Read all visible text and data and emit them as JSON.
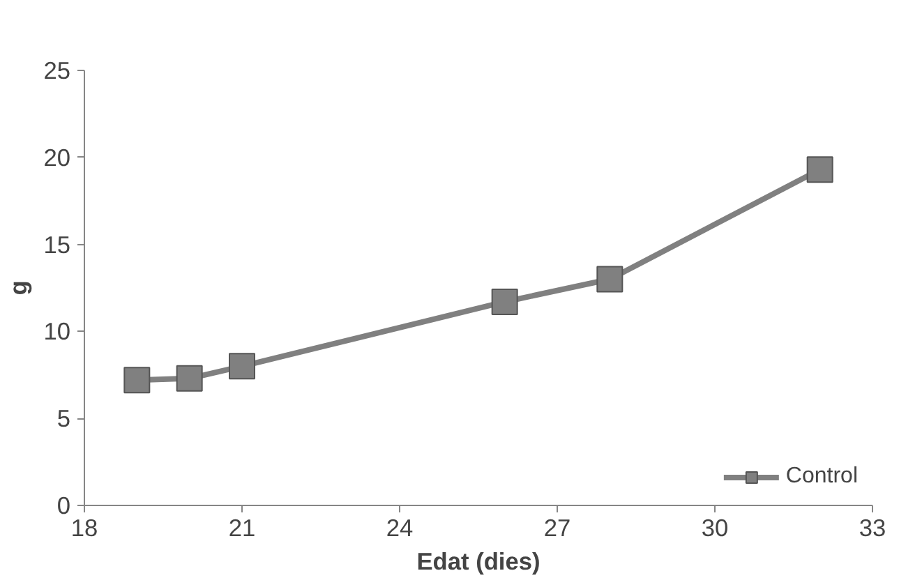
{
  "chart_data": {
    "type": "line",
    "xlabel": "Edat (dies)",
    "ylabel": "g",
    "x": [
      19,
      20,
      21,
      26,
      28,
      32
    ],
    "series": [
      {
        "name": "Control",
        "color": "#808080",
        "values": [
          7.2,
          7.3,
          8.0,
          11.7,
          13.0,
          19.3
        ]
      }
    ],
    "xlim": [
      18,
      33
    ],
    "xticks": [
      18,
      21,
      24,
      27,
      30,
      33
    ],
    "ylim": [
      0,
      25
    ],
    "yticks": [
      0,
      5,
      10,
      15,
      20,
      25
    ],
    "grid": false,
    "legend": "bottom right",
    "marker": "square",
    "line_style": "solid"
  }
}
